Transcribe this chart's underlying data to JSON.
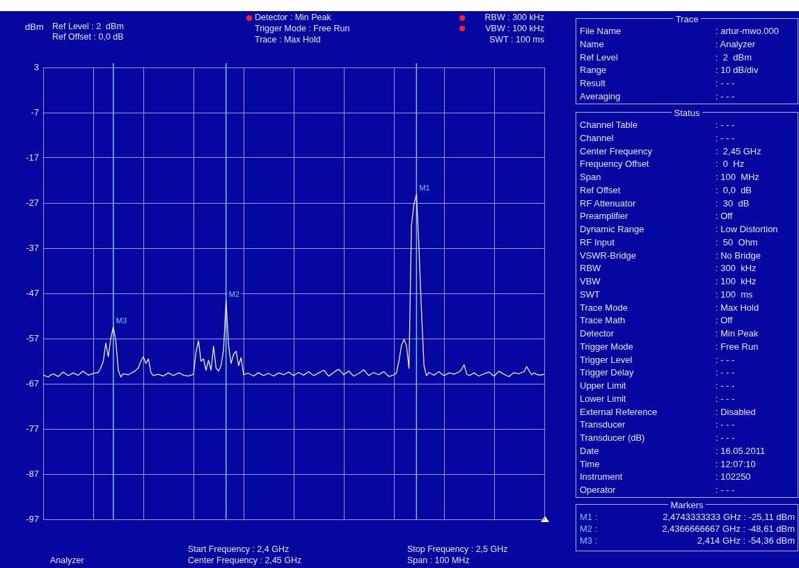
{
  "chart_data": [
    {
      "type": "line",
      "ylabel": "dBm",
      "ylim": [
        -97,
        3
      ],
      "categories": [
        null,
        null,
        null,
        null,
        null,
        null,
        null,
        null,
        null,
        null,
        null,
        null,
        null,
        null,
        null,
        null,
        null,
        null,
        null,
        null,
        null,
        null,
        null,
        null,
        null,
        null,
        null,
        null,
        null,
        null,
        null,
        null,
        null,
        null,
        null,
        null,
        null,
        null,
        null,
        null,
        null,
        null,
        null,
        null,
        null,
        null,
        null,
        null,
        null,
        null,
        null,
        null,
        null,
        null,
        null,
        null,
        null,
        null,
        null,
        null,
        null,
        null,
        null,
        null,
        null,
        null,
        null,
        null,
        null,
        null,
        null,
        null,
        null,
        null,
        null,
        null,
        null,
        null,
        null,
        null,
        null,
        null,
        null,
        null,
        null,
        null,
        null,
        null,
        null,
        null,
        null,
        null,
        null,
        null,
        null,
        null,
        null,
        null,
        null,
        null,
        null,
        null,
        null,
        null,
        null,
        null,
        null,
        null,
        null,
        null,
        null,
        null,
        null,
        null,
        null,
        null,
        null,
        null,
        null,
        null,
        null,
        null,
        null,
        null,
        null,
        null,
        null,
        null,
        null,
        null,
        null,
        null,
        null,
        null,
        null,
        null,
        null,
        null,
        null,
        null,
        null,
        null,
        null,
        null,
        null,
        null,
        null,
        null,
        null,
        null,
        null,
        null,
        null,
        null,
        null,
        null,
        null,
        null,
        null,
        null,
        null,
        null,
        null,
        null,
        null,
        null,
        null,
        null,
        null,
        null,
        null,
        null,
        null,
        null,
        null,
        null,
        null,
        null,
        null,
        null,
        null,
        null,
        null,
        null,
        null,
        null,
        null,
        null,
        null,
        null,
        null,
        null,
        null,
        null,
        null,
        null,
        null,
        null,
        null,
        null,
        null
      ],
      "yticks": [
        3,
        -7,
        -17,
        -27,
        -37,
        -47,
        -57,
        -67,
        -77,
        -87,
        -97
      ],
      "grid": true,
      "tick_labels": "y",
      "series": [
        {
          "color": "#f0f0c0",
          "values": [
            -65,
            -65.3,
            -65.5,
            -65.1,
            -64.8,
            -65.1,
            -65.4,
            -64.9,
            -64.4,
            -64.8,
            -65.2,
            -64.9,
            -64.6,
            -64.9,
            -65.1,
            -64.6,
            -64.2,
            -64.7,
            -65.1,
            -64.9,
            -64.7,
            -64.6,
            -64.5,
            -63.5,
            -62,
            -58,
            -61,
            -57,
            -54.4,
            -57.5,
            -64,
            -65.5,
            -64.8,
            -64.9,
            -65,
            -64.7,
            -64.4,
            -64,
            -63.5,
            -62,
            -61,
            -62.5,
            -61.5,
            -64.5,
            -65.2,
            -65,
            -64.9,
            -65.1,
            -65.3,
            -64.9,
            -64.6,
            -64.9,
            -65.2,
            -64.9,
            -64.6,
            -64.8,
            -65.1,
            -65.2,
            -65.3,
            -65.1,
            -64.9,
            -60,
            -57.5,
            -62,
            -61.5,
            -64,
            -61.8,
            -64,
            -58.7,
            -63.5,
            -64.2,
            -63,
            -59.5,
            -48.6,
            -58.5,
            -62.5,
            -60.5,
            -59.8,
            -63,
            -61.2,
            -65,
            -64.8,
            -64.7,
            -65,
            -65.3,
            -64.9,
            -64.5,
            -64.9,
            -65.2,
            -64.9,
            -64.7,
            -65,
            -65.3,
            -64.9,
            -64.6,
            -64.8,
            -65,
            -64.7,
            -64.4,
            -64.8,
            -65.2,
            -64.8,
            -64.5,
            -64.8,
            -65.1,
            -64.7,
            -64.3,
            -64.8,
            -65.2,
            -64.9,
            -64.6,
            -64.3,
            -64,
            -64.7,
            -65.3,
            -64.9,
            -64.5,
            -64.1,
            -63.8,
            -64.4,
            -65,
            -64.6,
            -64.2,
            -64.8,
            -65.3,
            -65,
            -64.7,
            -64.3,
            -63.9,
            -64.6,
            -65.2,
            -64.8,
            -64.5,
            -64.8,
            -65,
            -64.6,
            -64.3,
            -64.9,
            -65.4,
            -65.2,
            -65,
            -64.6,
            -62,
            -58.5,
            -57.2,
            -58.5,
            -63.6,
            -32,
            -27.2,
            -25.1,
            -37,
            -51,
            -63,
            -65.2,
            -64.5,
            -64.8,
            -65.1,
            -64.7,
            -64.3,
            -64.8,
            -65.2,
            -64.9,
            -64.6,
            -64.7,
            -64.9,
            -64.6,
            -64.4,
            -63.8,
            -62.8,
            -64.8,
            -65.2,
            -64.9,
            -64.6,
            -65,
            -65.3,
            -65,
            -64.8,
            -64.6,
            -64.4,
            -64.9,
            -65.3,
            -64.7,
            -64.2,
            -64.6,
            -64.9,
            -65.2,
            -65.4,
            -64.9,
            -64.5,
            -64.7,
            -64.8,
            -64.5,
            -64.3,
            -63.2,
            -64.2,
            -65,
            -64.6,
            -64.9,
            -65.1,
            -65,
            -64.9
          ],
          "value_labels": [
            null,
            null,
            null,
            null,
            null,
            null,
            null,
            null,
            null,
            null,
            null,
            null,
            null,
            null,
            null,
            null,
            null,
            null,
            null,
            null,
            null,
            null,
            null,
            null,
            null,
            null,
            null,
            null,
            "M3",
            null,
            null,
            null,
            null,
            null,
            null,
            null,
            null,
            null,
            null,
            null,
            null,
            null,
            null,
            null,
            null,
            null,
            null,
            null,
            null,
            null,
            null,
            null,
            null,
            null,
            null,
            null,
            null,
            null,
            null,
            null,
            null,
            null,
            null,
            null,
            null,
            null,
            null,
            null,
            null,
            null,
            null,
            null,
            null,
            "M2",
            null,
            null,
            null,
            null,
            null,
            null,
            null,
            null,
            null,
            null,
            null,
            null,
            null,
            null,
            null,
            null,
            null,
            null,
            null,
            null,
            null,
            null,
            null,
            null,
            null,
            null,
            null,
            null,
            null,
            null,
            null,
            null,
            null,
            null,
            null,
            null,
            null,
            null,
            null,
            null,
            null,
            null,
            null,
            null,
            null,
            null,
            null,
            null,
            null,
            null,
            null,
            null,
            null,
            null,
            null,
            null,
            null,
            null,
            null,
            null,
            null,
            null,
            null,
            null,
            null,
            null,
            null,
            null,
            null,
            null,
            null,
            null,
            null,
            null,
            null,
            "M1",
            null,
            null,
            null,
            null,
            null,
            null,
            null,
            null,
            null,
            null,
            null,
            null,
            null,
            null,
            null,
            null,
            null,
            null,
            null,
            null,
            null,
            null,
            null,
            null,
            null,
            null,
            null,
            null,
            null,
            null,
            null,
            null,
            null,
            null,
            null,
            null,
            null,
            null,
            null,
            null,
            null,
            null,
            null,
            null,
            null,
            null,
            null,
            null,
            null,
            null,
            null
          ]
        }
      ],
      "annotations": [
        "Ref Level : 2  dBm",
        "Ref Offset : 0,0 dB",
        "Detector : Min Peak",
        "Trigger Mode : Free Run",
        "Trace : Max Hold",
        "RBW : 300 kHz",
        "VBW : 100 kHz",
        "SWT : 100 ms",
        "Analyzer",
        "Start Frequency : 2,4 GHz",
        "Center Frequency : 2,45 GHz",
        "Stop Frequency : 2,5 GHz",
        "Span : 100 MHz"
      ]
    },
    {
      "type": "other",
      "title": "Trace",
      "annotations": [
        "File Name",
        ": artur-mwo.000",
        "Name",
        ": Analyzer",
        "Ref Level",
        ":  2  dBm",
        "Range",
        ": 10 dB/div",
        "Result",
        ": - - -",
        "Averaging",
        ": - - -"
      ]
    },
    {
      "type": "other",
      "title": "Status",
      "annotations": [
        "Channel Table",
        ": - - -",
        "Channel",
        ": - - -",
        "Center Frequency",
        ":  2,45 GHz",
        "Frequency Offset",
        ":  0  Hz",
        "Span",
        ": 100  MHz",
        "Ref Offset",
        ":  0,0  dB",
        "RF Attenuator",
        ":  30  dB",
        "Preamplifier",
        ": Off",
        "Dynamic Range",
        ": Low Distortion",
        "RF Input",
        ":  50  Ohm",
        "VSWR-Bridge",
        ": No Bridge",
        "RBW",
        ": 300  kHz",
        "VBW",
        ": 100  kHz",
        "SWT",
        ": 100  ms",
        "Trace Mode",
        ": Max Hold",
        "Trace Math",
        ": Off",
        "Detector",
        ": Min Peak",
        "Trigger Mode",
        ": Free Run",
        "Trigger Level",
        ": - - -",
        "Trigger Delay",
        ": - - -",
        "Upper Limit",
        ": - - -",
        "Lower Limit",
        ": - - -",
        "External Reference",
        ": Disabled",
        "Transducer",
        ": - - -",
        "Transducer (dB)",
        ": - - -",
        "Date",
        ": 16.05.2011",
        "Time",
        ": 12:07:10",
        "Instrument",
        ": 102250",
        "Operator",
        ": - - -"
      ]
    },
    {
      "type": "other",
      "title": "Markers",
      "annotations": [
        "M1 :",
        "2,4743333333 GHz : -25,11 dBm",
        "M2 :",
        "2,4366666667 GHz : -48,61 dBm",
        "M3 :",
        "2,414 GHz : -54,36 dBm"
      ]
    }
  ]
}
